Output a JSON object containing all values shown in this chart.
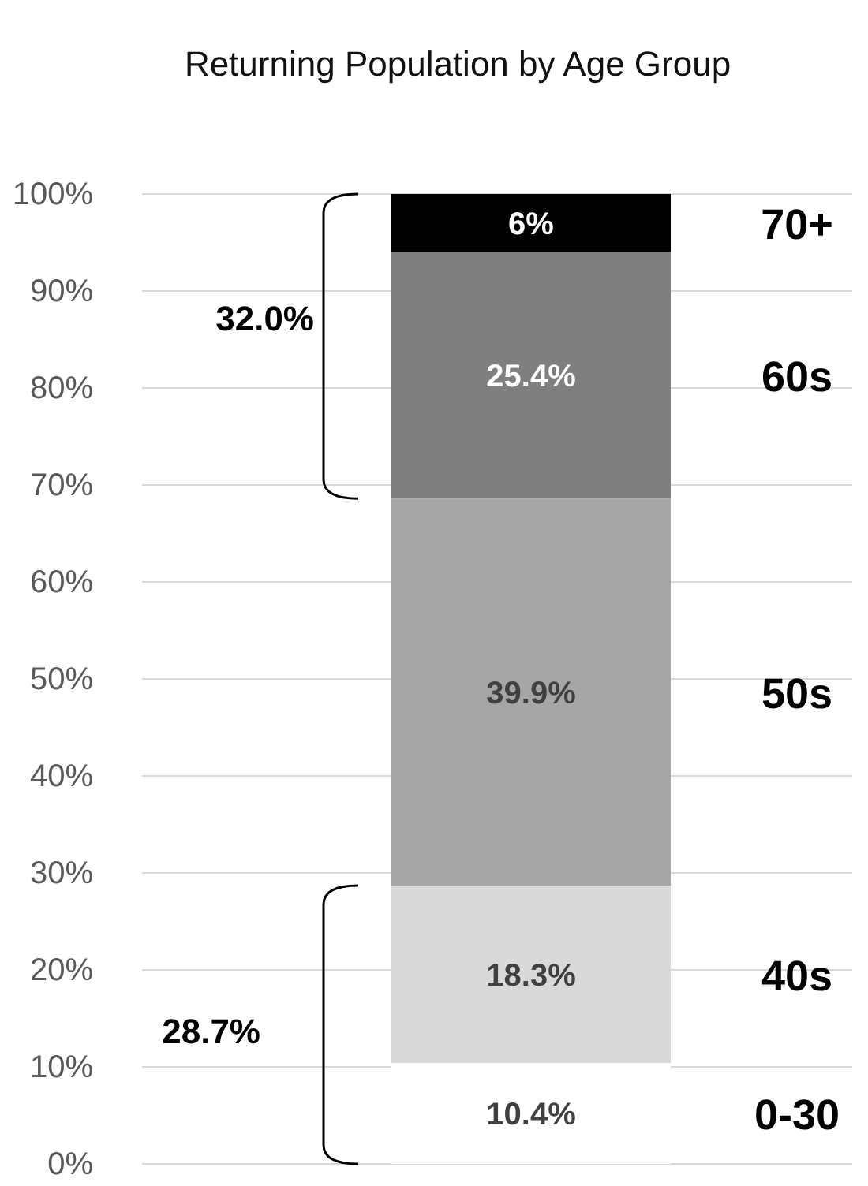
{
  "chart_data": {
    "type": "bar",
    "title": "Returning Population by Age Group",
    "categories": [
      null
    ],
    "stacked": true,
    "series": [
      {
        "name": "0-30",
        "color": "#ffffff",
        "values": [
          10.4
        ],
        "value_labels": [
          "10.4%"
        ]
      },
      {
        "name": "40s",
        "color": "#d9d9d9",
        "values": [
          18.3
        ],
        "value_labels": [
          "18.3%"
        ]
      },
      {
        "name": "50s",
        "color": "#a6a6a6",
        "values": [
          39.9
        ],
        "value_labels": [
          "39.9%"
        ]
      },
      {
        "name": "60s",
        "color": "#7f7f7f",
        "values": [
          25.4
        ],
        "value_labels": [
          "25.4%"
        ]
      },
      {
        "name": "70+",
        "color": "#000000",
        "values": [
          6
        ],
        "value_labels": [
          "6%"
        ]
      }
    ],
    "ylim": [
      0,
      100
    ],
    "yticks": [
      {
        "value": 0,
        "label": "0%"
      },
      {
        "value": 10,
        "label": "10%"
      },
      {
        "value": 20,
        "label": "20%"
      },
      {
        "value": 30,
        "label": "30%"
      },
      {
        "value": 40,
        "label": "40%"
      },
      {
        "value": 50,
        "label": "50%"
      },
      {
        "value": 60,
        "label": "60%"
      },
      {
        "value": 70,
        "label": "70%"
      },
      {
        "value": 80,
        "label": "80%"
      },
      {
        "value": 90,
        "label": "90%"
      },
      {
        "value": 100,
        "label": "100%"
      }
    ],
    "grid": "y",
    "annotations": [
      "32.0%",
      "28.7%"
    ]
  }
}
